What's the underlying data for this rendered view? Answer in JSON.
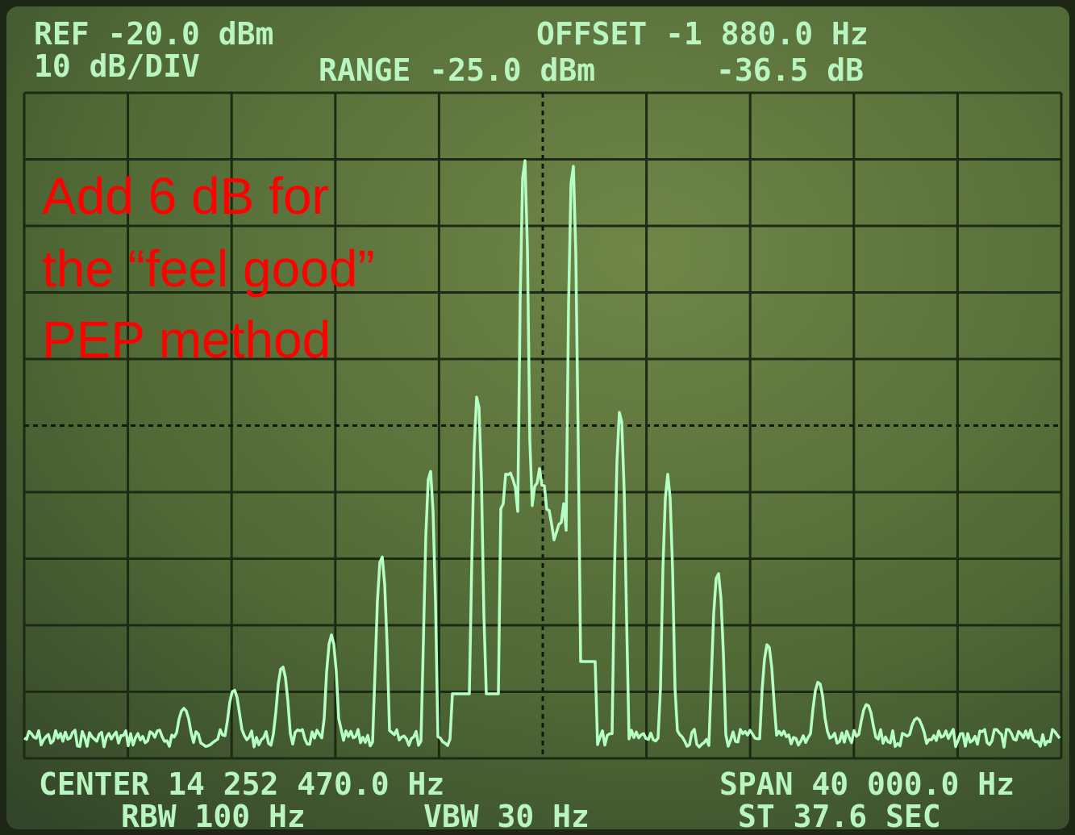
{
  "header": {
    "ref": "REF -20.0 dBm",
    "offset": "OFFSET -1 880.0 Hz",
    "scale": "10 dB/DIV",
    "range": "RANGE -25.0 dBm",
    "ratio": "-36.5 dB"
  },
  "footer": {
    "center": "CENTER 14 252 470.0 Hz",
    "span": "SPAN 40 000.0 Hz",
    "rbw": "RBW 100 Hz",
    "vbw": "VBW 30 Hz",
    "sweep": "ST 37.6 SEC"
  },
  "annotation": {
    "lines": [
      "Add 6 dB for",
      "the “feel good”",
      "PEP method"
    ]
  }
}
